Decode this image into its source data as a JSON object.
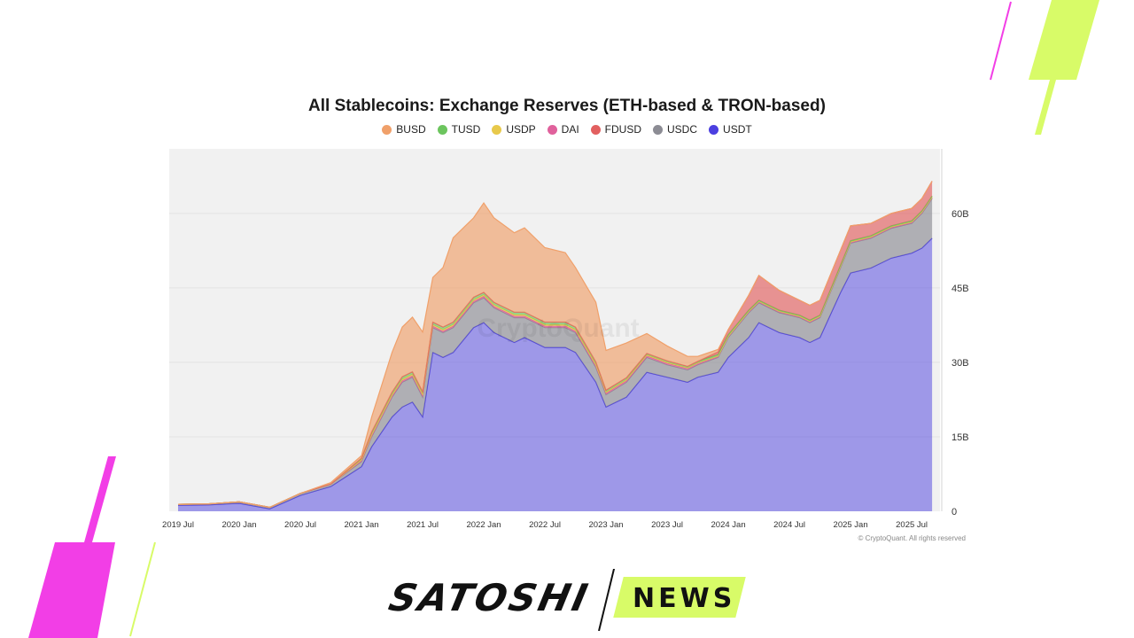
{
  "chart_data": {
    "type": "area",
    "stacked": true,
    "title": "All Stablecoins: Exchange Reserves (ETH-based & TRON-based)",
    "x": [
      "2019-07",
      "2019-10",
      "2020-01",
      "2020-04",
      "2020-07",
      "2020-10",
      "2021-01",
      "2021-02",
      "2021-04",
      "2021-05",
      "2021-06",
      "2021-07",
      "2021-08",
      "2021-09",
      "2021-10",
      "2021-12",
      "2022-01",
      "2022-02",
      "2022-04",
      "2022-05",
      "2022-07",
      "2022-09",
      "2022-10",
      "2022-12",
      "2023-01",
      "2023-03",
      "2023-05",
      "2023-07",
      "2023-09",
      "2023-10",
      "2023-12",
      "2024-01",
      "2024-03",
      "2024-04",
      "2024-06",
      "2024-08",
      "2024-09",
      "2024-10",
      "2024-12",
      "2025-01",
      "2025-03",
      "2025-05",
      "2025-07",
      "2025-08",
      "2025-09"
    ],
    "series": [
      {
        "name": "USDT",
        "color": "#4b3fe0",
        "values": [
          1.2,
          1.3,
          1.6,
          0.5,
          3.2,
          5,
          9,
          13,
          19,
          21,
          22,
          19,
          32,
          31,
          32,
          37,
          38,
          36,
          34,
          35,
          33,
          33,
          32,
          26,
          21,
          23,
          28,
          27,
          26,
          27,
          28,
          31,
          35,
          38,
          36,
          35,
          34,
          35,
          44,
          48,
          49,
          51,
          52,
          53,
          55
        ]
      },
      {
        "name": "USDC",
        "color": "#8c8c94",
        "values": [
          0.2,
          0.2,
          0.3,
          0.3,
          0.4,
          0.5,
          1,
          2,
          4,
          5,
          5,
          4,
          5,
          5,
          5,
          5,
          5,
          5,
          5,
          4,
          4,
          4,
          4,
          3,
          2.5,
          3,
          3,
          2.5,
          2.5,
          2.5,
          3,
          4,
          5,
          4,
          4,
          4,
          4,
          4,
          5,
          6,
          6,
          6,
          6,
          7,
          8
        ]
      },
      {
        "name": "DAI",
        "color": "#e0619c",
        "values": [
          0,
          0,
          0,
          0,
          0,
          0,
          0.2,
          0.2,
          0.2,
          0.3,
          0.3,
          0.3,
          0.3,
          0.3,
          0.3,
          0.3,
          0.3,
          0.3,
          0.3,
          0.3,
          0.3,
          0.3,
          0.3,
          0.3,
          0.3,
          0.3,
          0.3,
          0.3,
          0.3,
          0.3,
          0.2,
          0.2,
          0.2,
          0.2,
          0.2,
          0.2,
          0.2,
          0.2,
          0.2,
          0.2,
          0.2,
          0.2,
          0.2,
          0.2,
          0.2
        ]
      },
      {
        "name": "USDP",
        "color": "#e8c94b",
        "values": [
          0,
          0,
          0,
          0,
          0,
          0,
          0.2,
          0.3,
          0.3,
          0.3,
          0.3,
          0.3,
          0.3,
          0.3,
          0.3,
          0.3,
          0.3,
          0.3,
          0.3,
          0.3,
          0.3,
          0.3,
          0.3,
          0.3,
          0.2,
          0.2,
          0.2,
          0.2,
          0.1,
          0.1,
          0.1,
          0.1,
          0.1,
          0.1,
          0.1,
          0.1,
          0.1,
          0.1,
          0.1,
          0.1,
          0.1,
          0.1,
          0.1,
          0.1,
          0.1
        ]
      },
      {
        "name": "TUSD",
        "color": "#6cc55e",
        "values": [
          0,
          0,
          0,
          0,
          0,
          0,
          0.3,
          0.5,
          0.5,
          0.5,
          0.5,
          0.5,
          0.5,
          0.5,
          0.5,
          0.5,
          0.5,
          0.5,
          0.5,
          0.5,
          0.5,
          0.5,
          0.5,
          0.5,
          0.4,
          0.4,
          0.3,
          0.3,
          0.3,
          0.3,
          0.3,
          0.3,
          0.2,
          0.2,
          0.2,
          0.2,
          0.2,
          0.2,
          0.2,
          0.2,
          0.2,
          0.2,
          0.2,
          0.2,
          0.2
        ]
      },
      {
        "name": "FDUSD",
        "color": "#e26060",
        "values": [
          0,
          0,
          0,
          0,
          0,
          0,
          0,
          0,
          0,
          0,
          0,
          0,
          0,
          0,
          0,
          0,
          0,
          0,
          0,
          0,
          0,
          0,
          0,
          0,
          0,
          0,
          0,
          0,
          0,
          0,
          0.5,
          1,
          3,
          5,
          4,
          3,
          3,
          3,
          3,
          3,
          2.5,
          2.5,
          2.5,
          2.5,
          3
        ]
      },
      {
        "name": "BUSD",
        "color": "#f0a06a",
        "values": [
          0,
          0,
          0,
          0,
          0,
          0.3,
          0.5,
          3,
          8,
          10,
          11,
          12,
          9,
          12,
          17,
          16,
          18,
          17,
          16,
          17,
          15,
          14,
          12,
          12,
          8,
          7,
          4,
          3,
          2,
          1,
          0.5,
          0,
          0,
          0,
          0,
          0,
          0,
          0,
          0,
          0,
          0,
          0,
          0,
          0,
          0
        ]
      }
    ],
    "x_ticks": [
      "2019 Jul",
      "2020 Jan",
      "2020 Jul",
      "2021 Jan",
      "2021 Jul",
      "2022 Jan",
      "2022 Jul",
      "2023 Jan",
      "2023 Jul",
      "2024 Jan",
      "2024 Jul",
      "2025 Jan",
      "2025 Jul"
    ],
    "y_ticks": [
      "0",
      "15B",
      "30B",
      "45B",
      "60B"
    ],
    "y_tick_values": [
      0,
      15,
      30,
      45,
      60
    ],
    "ylim": [
      0,
      73
    ],
    "grid": true,
    "legend_position": "top-center",
    "watermark": "CryptoQuant"
  },
  "legend_order": [
    "BUSD",
    "TUSD",
    "USDP",
    "DAI",
    "FDUSD",
    "USDC",
    "USDT"
  ],
  "copyright": "© CryptoQuant. All rights reserved",
  "logo": {
    "left": "SATOSHI",
    "right": "NEWS"
  },
  "colors": {
    "accent_magenta": "#f23ee6",
    "accent_lime": "#d8fb68",
    "plot_bg": "#f1f1f1"
  }
}
